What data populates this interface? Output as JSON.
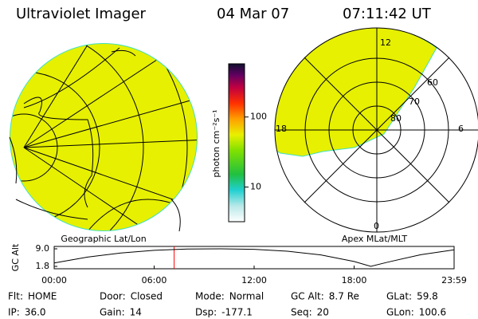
{
  "header": {
    "title": "Ultraviolet Imager",
    "date": "04 Mar 07",
    "time": "07:11:42 UT"
  },
  "colorbar": {
    "label": "photon cm⁻²s⁻¹",
    "log_scale": true,
    "lim": [
      3.2,
      575
    ],
    "ticks": [
      100,
      10
    ]
  },
  "geographic_panel": {
    "caption": "Geographic Lat/Lon"
  },
  "polar_panel": {
    "caption": "Apex MLat/MLT",
    "mlt_labels": [
      "12",
      "18",
      "6",
      "0"
    ],
    "lat_labels": [
      "60",
      "70",
      "80"
    ]
  },
  "altitude_plot": {
    "ylabel": "GC Alt",
    "ylim": [
      1.8,
      9.0
    ],
    "yticks": [
      {
        "value": 9.0,
        "label": "9.0"
      },
      1.8
    ],
    "xlim": [
      0,
      24
    ],
    "xticks": [
      {
        "value": 0,
        "label": "00:00"
      },
      {
        "value": 6,
        "label": "06:00"
      },
      {
        "value": 12,
        "label": "12:00"
      },
      {
        "value": 18,
        "label": "18:00"
      },
      {
        "value": 24,
        "label": "23:59"
      }
    ],
    "x": [
      0,
      2,
      4,
      6,
      7.2,
      8,
      10,
      12,
      14,
      16,
      18,
      19,
      20,
      22,
      24
    ],
    "values": [
      3.2,
      5.6,
      7.3,
      8.4,
      8.7,
      8.9,
      9.0,
      8.8,
      8.0,
      6.5,
      3.8,
      1.8,
      3.5,
      6.6,
      8.6
    ],
    "color": "#000000",
    "current_hour": 7.2,
    "current_color": "#ff0000"
  },
  "footer": {
    "rows": [
      [
        [
          "Flt:",
          "HOME"
        ],
        [
          "Door:",
          "Closed"
        ],
        [
          "Mode:",
          "Normal"
        ],
        [
          "GC Alt:",
          "8.7 Re"
        ],
        [
          "GLat:",
          "59.8"
        ]
      ],
      [
        [
          "IP:",
          "36.0"
        ],
        [
          "Gain:",
          "14"
        ],
        [
          "Dsp:",
          "-177.1"
        ],
        [
          "Seq:",
          "20"
        ],
        [
          "GLon:",
          "100.6"
        ]
      ]
    ]
  }
}
